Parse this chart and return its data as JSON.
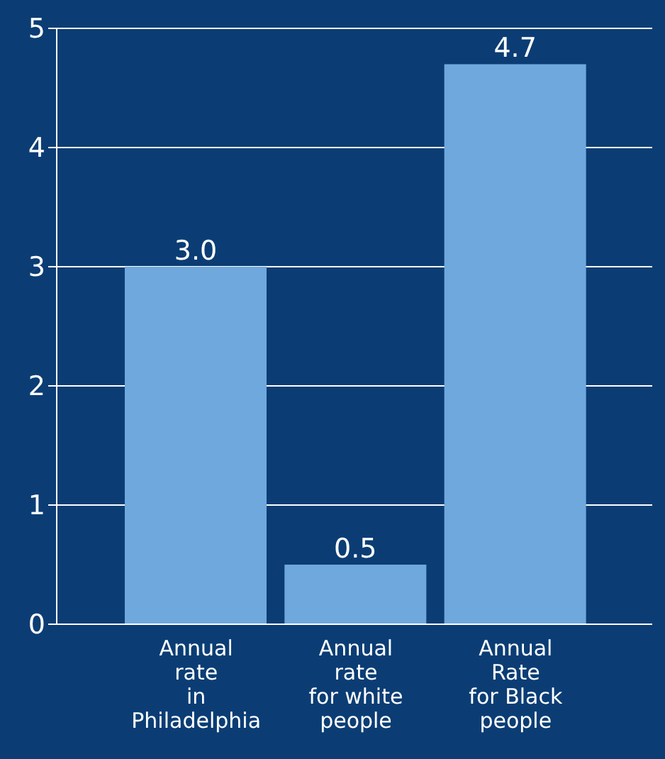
{
  "chart_data": {
    "type": "bar",
    "categories": [
      "Annual\nrate\nin\nPhiladelphia",
      "Annual\nrate\nfor white\npeople",
      "Annual\nRate\nfor Black\npeople"
    ],
    "values": [
      3.0,
      0.5,
      4.7
    ],
    "color": "#6fa8dc",
    "ylim": [
      0,
      5
    ],
    "yticks": [
      0,
      1,
      2,
      3,
      4,
      5
    ],
    "grid": "y",
    "value_labels": [
      "3.0",
      "0.5",
      "4.7"
    ]
  }
}
